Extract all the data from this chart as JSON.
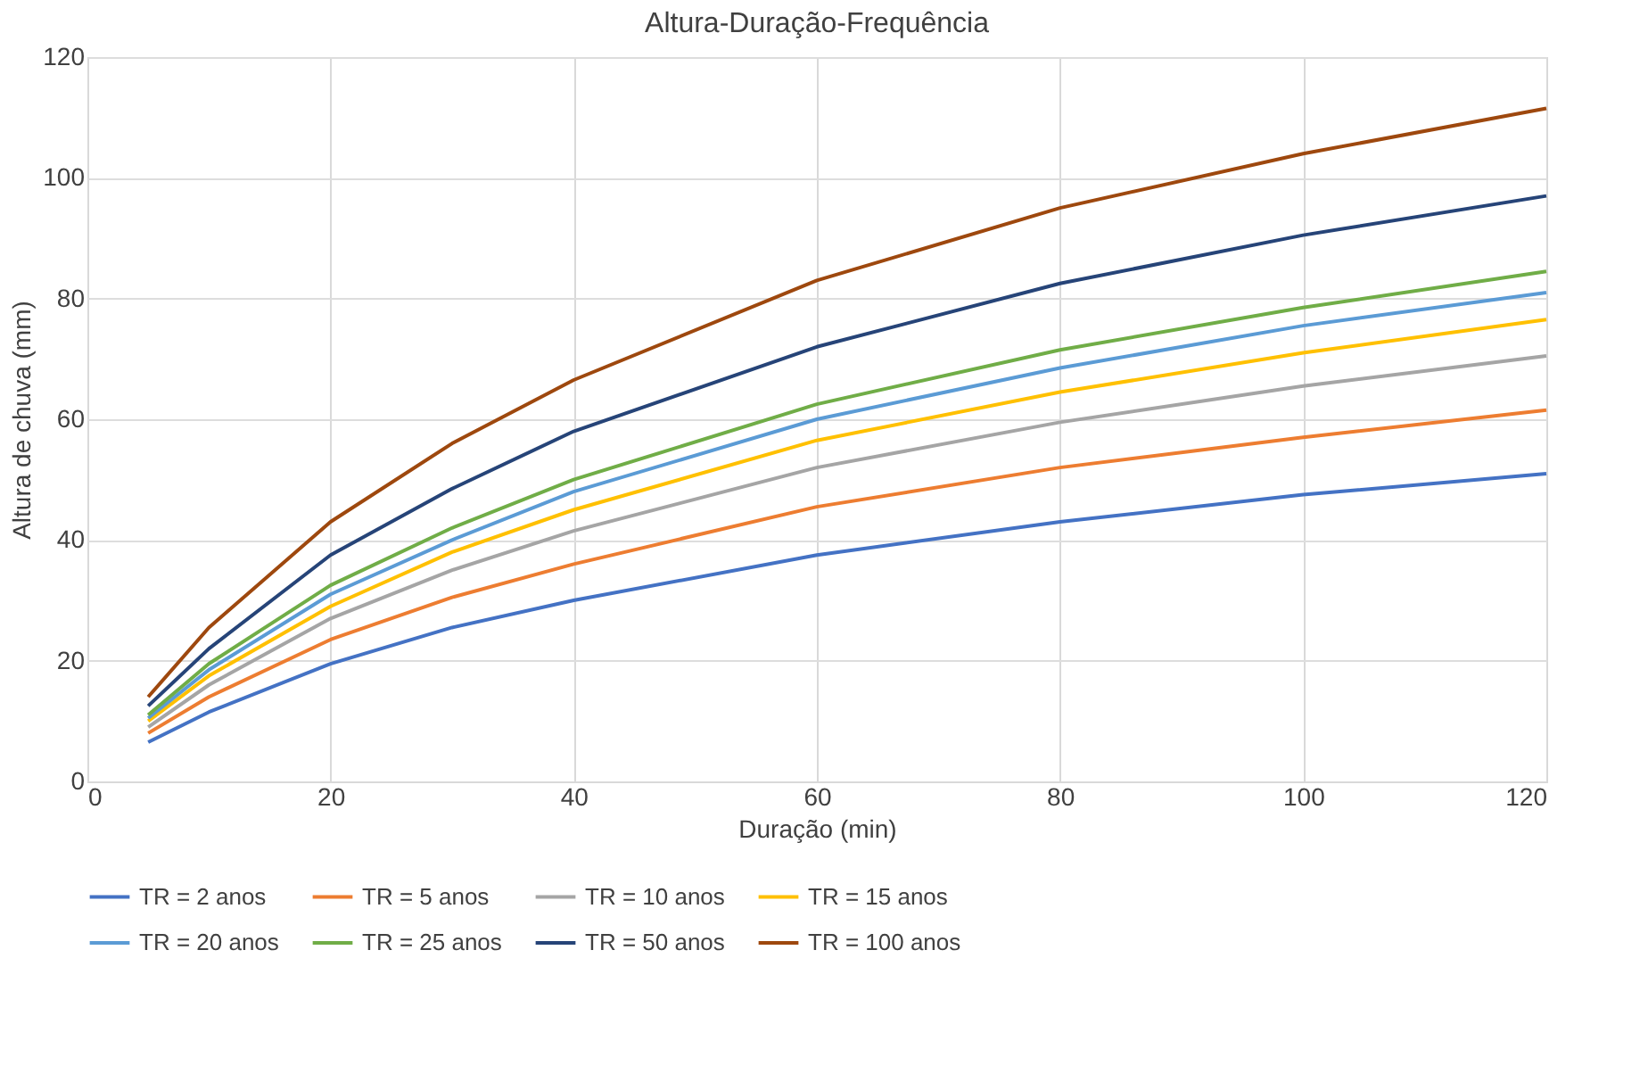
{
  "chart_data": {
    "type": "line",
    "title": "Altura-Duração-Frequência",
    "xlabel": "Duração (min)",
    "ylabel": "Altura de chuva (mm)",
    "x": [
      5,
      10,
      20,
      30,
      40,
      60,
      80,
      100,
      120
    ],
    "series": [
      {
        "name": "TR = 2 anos",
        "color": "#4472c4",
        "values": [
          6.5,
          11.5,
          19.5,
          25.5,
          30,
          37.5,
          43,
          47.5,
          51
        ]
      },
      {
        "name": "TR = 5 anos",
        "color": "#ed7d31",
        "values": [
          8,
          14,
          23.5,
          30.5,
          36,
          45.5,
          52,
          57,
          61.5
        ]
      },
      {
        "name": "TR = 10 anos",
        "color": "#a5a5a5",
        "values": [
          9,
          16,
          27,
          35,
          41.5,
          52,
          59.5,
          65.5,
          70.5
        ]
      },
      {
        "name": "TR = 15 anos",
        "color": "#ffc000",
        "values": [
          10,
          17.5,
          29,
          38,
          45,
          56.5,
          64.5,
          71,
          76.5
        ]
      },
      {
        "name": "TR = 20 anos",
        "color": "#5b9bd5",
        "values": [
          10.5,
          18.5,
          31,
          40,
          48,
          60,
          68.5,
          75.5,
          81
        ]
      },
      {
        "name": "TR = 25 anos",
        "color": "#70ad47",
        "values": [
          11,
          19.5,
          32.5,
          42,
          50,
          62.5,
          71.5,
          78.5,
          84.5
        ]
      },
      {
        "name": "TR = 50 anos",
        "color": "#264478",
        "values": [
          12.5,
          22,
          37.5,
          48.5,
          58,
          72,
          82.5,
          90.5,
          97
        ]
      },
      {
        "name": "TR = 100 anos",
        "color": "#9e480e",
        "values": [
          14,
          25.5,
          43,
          56,
          66.5,
          83,
          95,
          104,
          111.5
        ]
      }
    ],
    "xlim": [
      0,
      120
    ],
    "xticks": [
      0,
      20,
      40,
      60,
      80,
      100,
      120
    ],
    "ylim": [
      0,
      120
    ],
    "yticks": [
      0,
      20,
      40,
      60,
      80,
      100,
      120
    ],
    "grid": true,
    "legend": "bottom",
    "marker": "none",
    "line_style": "solid"
  }
}
